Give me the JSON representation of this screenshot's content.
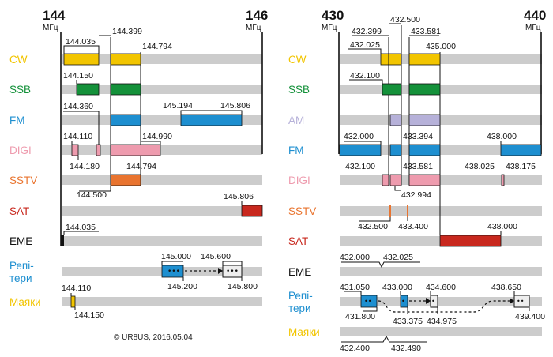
{
  "colors": {
    "cw": "#f2c500",
    "ssb": "#14913a",
    "fm": "#1e8fd0",
    "am": "#b6b1d9",
    "digi": "#ee9bae",
    "sstv": "#e9742f",
    "sat": "#c8281e",
    "eme": "#111111",
    "rep": "#1e8fd0",
    "bea": "#f2c500",
    "track": "#cccccc"
  },
  "left": {
    "start": "144",
    "end": "146",
    "unit_start": "МГц",
    "unit_end": "МГц",
    "modes": {
      "cw": "CW",
      "ssb": "SSB",
      "fm": "FM",
      "digi": "DIGI",
      "sstv": "SSTV",
      "sat": "SAT",
      "eme": "EME",
      "rep1": "Репі-",
      "rep2": "тери",
      "bea": "Маяки"
    },
    "labels": {
      "cw_a": "144.035",
      "cw_b": "144.399",
      "cw_c": "144.794",
      "ssb_a": "144.150",
      "fm_a": "144.360",
      "fm_b": "145.194",
      "fm_c": "145.806",
      "digi_a": "144.110",
      "digi_b": "144.990",
      "digi_c": "144.180",
      "sstv_a": "144.794",
      "sstv_b": "144.500",
      "sat_a": "145.806",
      "eme_a": "144.035",
      "rep_a": "145.000",
      "rep_b": "145.600",
      "rep_c": "145.200",
      "rep_d": "145.800",
      "bea_a": "144.110",
      "bea_b": "144.150"
    },
    "copyright": "© UR8US, 2016.05.04"
  },
  "right": {
    "start": "430",
    "end": "440",
    "unit_start": "МГц",
    "unit_end": "МГц",
    "modes": {
      "cw": "CW",
      "ssb": "SSB",
      "am": "AM",
      "fm": "FM",
      "digi": "DIGI",
      "sstv": "SSTV",
      "sat": "SAT",
      "eme": "EME",
      "rep1": "Репі-",
      "rep2": "тери",
      "bea": "Маяки"
    },
    "labels": {
      "cw_a": "432.500",
      "cw_b": "432.399",
      "cw_c": "432.025",
      "cw_d": "433.581",
      "cw_e": "435.000",
      "ssb_a": "432.100",
      "fm_a": "432.000",
      "fm_b": "433.394",
      "fm_c": "438.000",
      "digi_a": "432.100",
      "digi_b": "433.581",
      "digi_c": "438.025",
      "digi_d": "438.175",
      "digi_e": "432.994",
      "sstv_a": "432.500",
      "sstv_b": "433.400",
      "sat_a": "438.000",
      "eme_a": "432.000",
      "eme_b": "432.025",
      "rep_a": "431.050",
      "rep_b": "433.000",
      "rep_c": "434.600",
      "rep_d": "438.650",
      "rep_e": "431.800",
      "rep_f": "433.375",
      "rep_g": "434.975",
      "rep_h": "439.400",
      "bea_a": "432.400",
      "bea_b": "432.490"
    }
  }
}
